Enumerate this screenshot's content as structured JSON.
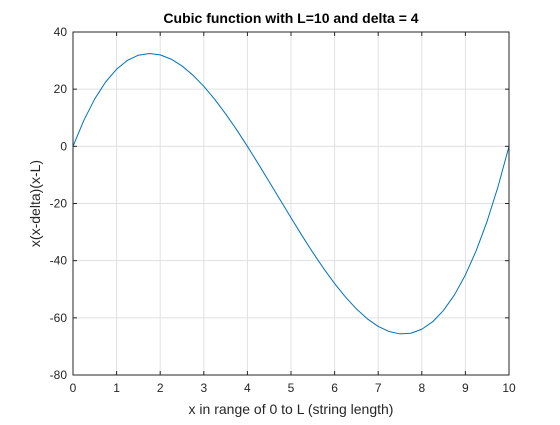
{
  "colors": {
    "line": "#0072BD",
    "grid": "#e0e0e0",
    "axis": "#262626",
    "background": "#ffffff"
  },
  "chart_data": {
    "type": "line",
    "title": "Cubic function with L=10 and delta = 4",
    "xlabel": "x in range of 0 to L (string length)",
    "ylabel": "x(x-delta)(x-L)",
    "xlim": [
      0,
      10
    ],
    "ylim": [
      -80,
      40
    ],
    "xticks": [
      0,
      1,
      2,
      3,
      4,
      5,
      6,
      7,
      8,
      9,
      10
    ],
    "yticks": [
      -80,
      -60,
      -40,
      -20,
      0,
      20,
      40
    ],
    "grid": true,
    "legend": "none",
    "series": [
      {
        "x": [
          0,
          0.25,
          0.5,
          0.75,
          1,
          1.25,
          1.5,
          1.75,
          2,
          2.25,
          2.5,
          2.75,
          3,
          3.25,
          3.5,
          3.75,
          4,
          4.25,
          4.5,
          4.75,
          5,
          5.25,
          5.5,
          5.75,
          6,
          6.25,
          6.5,
          6.75,
          7,
          7.25,
          7.5,
          7.75,
          8,
          8.25,
          8.5,
          8.75,
          9,
          9.25,
          9.5,
          9.75,
          10
        ],
        "y": [
          0,
          9.14,
          16.63,
          22.55,
          27,
          30.08,
          31.88,
          32.48,
          32,
          30.52,
          28.13,
          24.92,
          21,
          16.45,
          11.38,
          5.86,
          0,
          -6.11,
          -12.38,
          -18.7,
          -25,
          -31.17,
          -37.13,
          -42.77,
          -48,
          -52.73,
          -56.88,
          -60.33,
          -63,
          -64.8,
          -65.63,
          -65.39,
          -64,
          -61.36,
          -57.38,
          -51.95,
          -45,
          -36.42,
          -26.13,
          -14.02,
          0
        ]
      }
    ]
  }
}
